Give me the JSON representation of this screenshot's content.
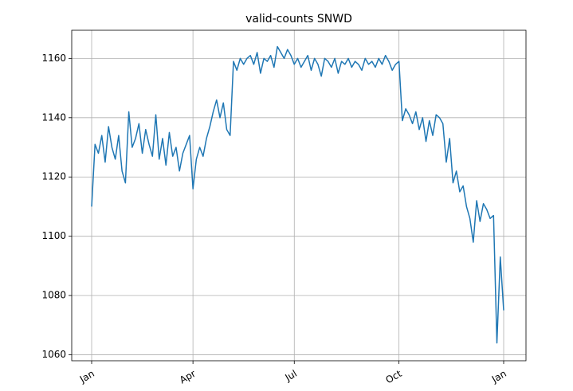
{
  "chart_data": {
    "type": "line",
    "title": "valid-counts SNWD",
    "categories": [
      "Jan",
      null,
      null,
      null,
      null,
      null,
      null,
      null,
      null,
      null,
      null,
      null,
      null,
      null,
      null,
      null,
      null,
      null,
      null,
      null,
      null,
      null,
      null,
      null,
      null,
      null,
      null,
      null,
      null,
      null,
      "Apr",
      null,
      null,
      null,
      null,
      null,
      null,
      null,
      null,
      null,
      null,
      null,
      null,
      null,
      null,
      null,
      null,
      null,
      null,
      null,
      null,
      null,
      null,
      null,
      null,
      null,
      null,
      null,
      null,
      null,
      "Jul",
      null,
      null,
      null,
      null,
      null,
      null,
      null,
      null,
      null,
      null,
      null,
      null,
      null,
      null,
      null,
      null,
      null,
      null,
      null,
      null,
      null,
      null,
      null,
      null,
      null,
      null,
      null,
      null,
      null,
      null,
      "Oct",
      null,
      null,
      null,
      null,
      null,
      null,
      null,
      null,
      null,
      null,
      null,
      null,
      null,
      null,
      null,
      null,
      null,
      null,
      null,
      null,
      null,
      null,
      null,
      null,
      null,
      null,
      null,
      null,
      null,
      null,
      "Jan"
    ],
    "values": [
      1110,
      1131,
      1128,
      1134,
      1125,
      1137,
      1130,
      1126,
      1134,
      1122,
      1118,
      1142,
      1130,
      1133,
      1138,
      1128,
      1136,
      1131,
      1127,
      1141,
      1126,
      1133,
      1124,
      1135,
      1127,
      1130,
      1122,
      1128,
      1131,
      1134,
      1116,
      1126,
      1130,
      1127,
      1133,
      1137,
      1142,
      1146,
      1140,
      1145,
      1136,
      1134,
      1159,
      1156,
      1160,
      1158,
      1160,
      1161,
      1158,
      1162,
      1155,
      1160,
      1159,
      1161,
      1157,
      1164,
      1162,
      1160,
      1163,
      1161,
      1158,
      1160,
      1157,
      1159,
      1161,
      1156,
      1160,
      1158,
      1154,
      1160,
      1159,
      1157,
      1160,
      1155,
      1159,
      1158,
      1160,
      1157,
      1159,
      1158,
      1156,
      1160,
      1158,
      1159,
      1157,
      1160,
      1158,
      1161,
      1159,
      1156,
      1158,
      1159,
      1139,
      1143,
      1141,
      1138,
      1142,
      1136,
      1140,
      1132,
      1139,
      1134,
      1141,
      1140,
      1138,
      1125,
      1133,
      1118,
      1122,
      1115,
      1117,
      1110,
      1106,
      1098,
      1112,
      1105,
      1111,
      1109,
      1106,
      1107,
      1064,
      1093,
      1075
    ],
    "color": "#1f77b4",
    "ylim": [
      1058,
      1169.5
    ],
    "yticks": [
      1060,
      1080,
      1100,
      1120,
      1140,
      1160
    ],
    "grid": true
  }
}
